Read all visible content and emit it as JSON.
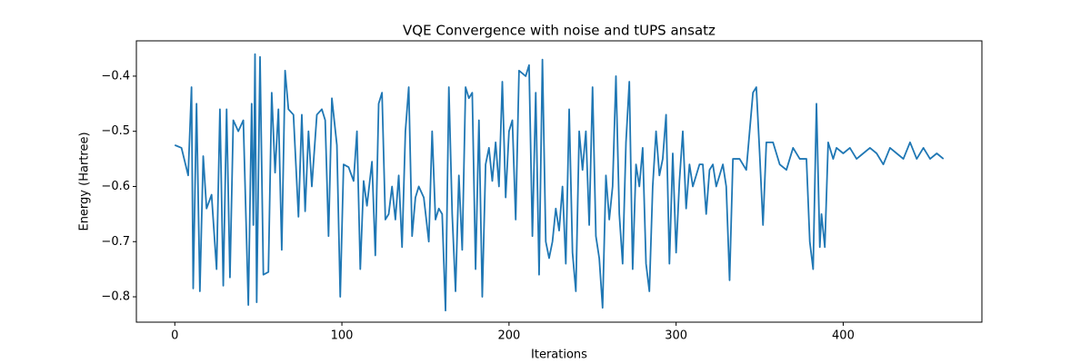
{
  "chart_data": {
    "type": "line",
    "title": "VQE Convergence with noise and tUPS ansatz",
    "x_label": "Iterations",
    "y_label": "Energy (Hartree)",
    "x": [
      0,
      4,
      8,
      10,
      11,
      13,
      15,
      17,
      19,
      22,
      25,
      27,
      29,
      31,
      33,
      35,
      38,
      41,
      44,
      46,
      47,
      48,
      49,
      51,
      53,
      56,
      58,
      60,
      62,
      64,
      66,
      68,
      71,
      74,
      76,
      78,
      80,
      82,
      85,
      88,
      90,
      92,
      94,
      97,
      99,
      101,
      104,
      107,
      109,
      111,
      113,
      115,
      118,
      120,
      122,
      124,
      126,
      128,
      130,
      132,
      134,
      136,
      138,
      140,
      142,
      144,
      146,
      149,
      152,
      154,
      156,
      158,
      160,
      162,
      164,
      166,
      168,
      170,
      172,
      174,
      176,
      178,
      180,
      182,
      184,
      186,
      188,
      190,
      192,
      194,
      196,
      198,
      200,
      202,
      204,
      206,
      210,
      212,
      214,
      216,
      218,
      220,
      222,
      224,
      226,
      228,
      230,
      232,
      234,
      236,
      238,
      240,
      242,
      244,
      246,
      248,
      250,
      252,
      254,
      256,
      258,
      260,
      262,
      264,
      266,
      268,
      270,
      272,
      274,
      276,
      278,
      280,
      282,
      284,
      286,
      288,
      290,
      292,
      294,
      296,
      298,
      300,
      302,
      304,
      306,
      308,
      310,
      314,
      316,
      318,
      320,
      322,
      324,
      328,
      330,
      332,
      334,
      338,
      342,
      346,
      348,
      350,
      352,
      354,
      358,
      362,
      366,
      370,
      374,
      378,
      380,
      382,
      384,
      386,
      387,
      389,
      391,
      394,
      396,
      400,
      404,
      408,
      412,
      416,
      420,
      424,
      428,
      432,
      436,
      440,
      444,
      448,
      452,
      456,
      460
    ],
    "series": [
      {
        "name": "Energy",
        "color": "#1f77b4",
        "values": [
          -0.525,
          -0.53,
          -0.58,
          -0.42,
          -0.785,
          -0.45,
          -0.79,
          -0.545,
          -0.64,
          -0.615,
          -0.75,
          -0.46,
          -0.78,
          -0.46,
          -0.765,
          -0.48,
          -0.5,
          -0.48,
          -0.815,
          -0.45,
          -0.67,
          -0.36,
          -0.81,
          -0.365,
          -0.76,
          -0.755,
          -0.43,
          -0.575,
          -0.46,
          -0.715,
          -0.39,
          -0.46,
          -0.47,
          -0.655,
          -0.47,
          -0.645,
          -0.5,
          -0.6,
          -0.47,
          -0.46,
          -0.48,
          -0.69,
          -0.44,
          -0.525,
          -0.8,
          -0.56,
          -0.565,
          -0.59,
          -0.5,
          -0.75,
          -0.59,
          -0.635,
          -0.555,
          -0.725,
          -0.45,
          -0.43,
          -0.66,
          -0.65,
          -0.6,
          -0.66,
          -0.58,
          -0.71,
          -0.5,
          -0.42,
          -0.69,
          -0.62,
          -0.6,
          -0.62,
          -0.7,
          -0.5,
          -0.66,
          -0.64,
          -0.65,
          -0.825,
          -0.42,
          -0.65,
          -0.79,
          -0.58,
          -0.715,
          -0.42,
          -0.44,
          -0.43,
          -0.75,
          -0.48,
          -0.8,
          -0.56,
          -0.53,
          -0.59,
          -0.52,
          -0.6,
          -0.41,
          -0.62,
          -0.5,
          -0.48,
          -0.66,
          -0.39,
          -0.4,
          -0.38,
          -0.69,
          -0.43,
          -0.76,
          -0.37,
          -0.7,
          -0.73,
          -0.7,
          -0.64,
          -0.68,
          -0.6,
          -0.74,
          -0.46,
          -0.72,
          -0.79,
          -0.5,
          -0.57,
          -0.5,
          -0.67,
          -0.42,
          -0.69,
          -0.73,
          -0.82,
          -0.58,
          -0.66,
          -0.6,
          -0.4,
          -0.65,
          -0.74,
          -0.52,
          -0.41,
          -0.75,
          -0.56,
          -0.6,
          -0.53,
          -0.74,
          -0.79,
          -0.6,
          -0.5,
          -0.58,
          -0.55,
          -0.47,
          -0.74,
          -0.54,
          -0.72,
          -0.59,
          -0.5,
          -0.64,
          -0.56,
          -0.6,
          -0.56,
          -0.56,
          -0.65,
          -0.57,
          -0.56,
          -0.6,
          -0.56,
          -0.6,
          -0.77,
          -0.55,
          -0.55,
          -0.57,
          -0.43,
          -0.42,
          -0.54,
          -0.67,
          -0.52,
          -0.52,
          -0.56,
          -0.57,
          -0.53,
          -0.55,
          -0.55,
          -0.7,
          -0.75,
          -0.45,
          -0.71,
          -0.65,
          -0.71,
          -0.52,
          -0.55,
          -0.53,
          -0.54,
          -0.53,
          -0.55,
          -0.54,
          -0.53,
          -0.54,
          -0.56,
          -0.53,
          -0.54,
          -0.55,
          -0.52,
          -0.55,
          -0.53,
          -0.55,
          -0.54,
          -0.55
        ]
      }
    ],
    "xlim": [
      -23,
      483
    ],
    "ylim": [
      -0.846,
      -0.336
    ],
    "xticks": [
      0,
      100,
      200,
      300,
      400
    ],
    "yticks": [
      {
        "value": -0.8,
        "label": "−0.8"
      },
      {
        "value": -0.7,
        "label": "−0.7"
      },
      {
        "value": -0.6,
        "label": "−0.6"
      },
      {
        "value": -0.5,
        "label": "−0.5"
      },
      {
        "value": -0.4,
        "label": "−0.4"
      }
    ]
  }
}
